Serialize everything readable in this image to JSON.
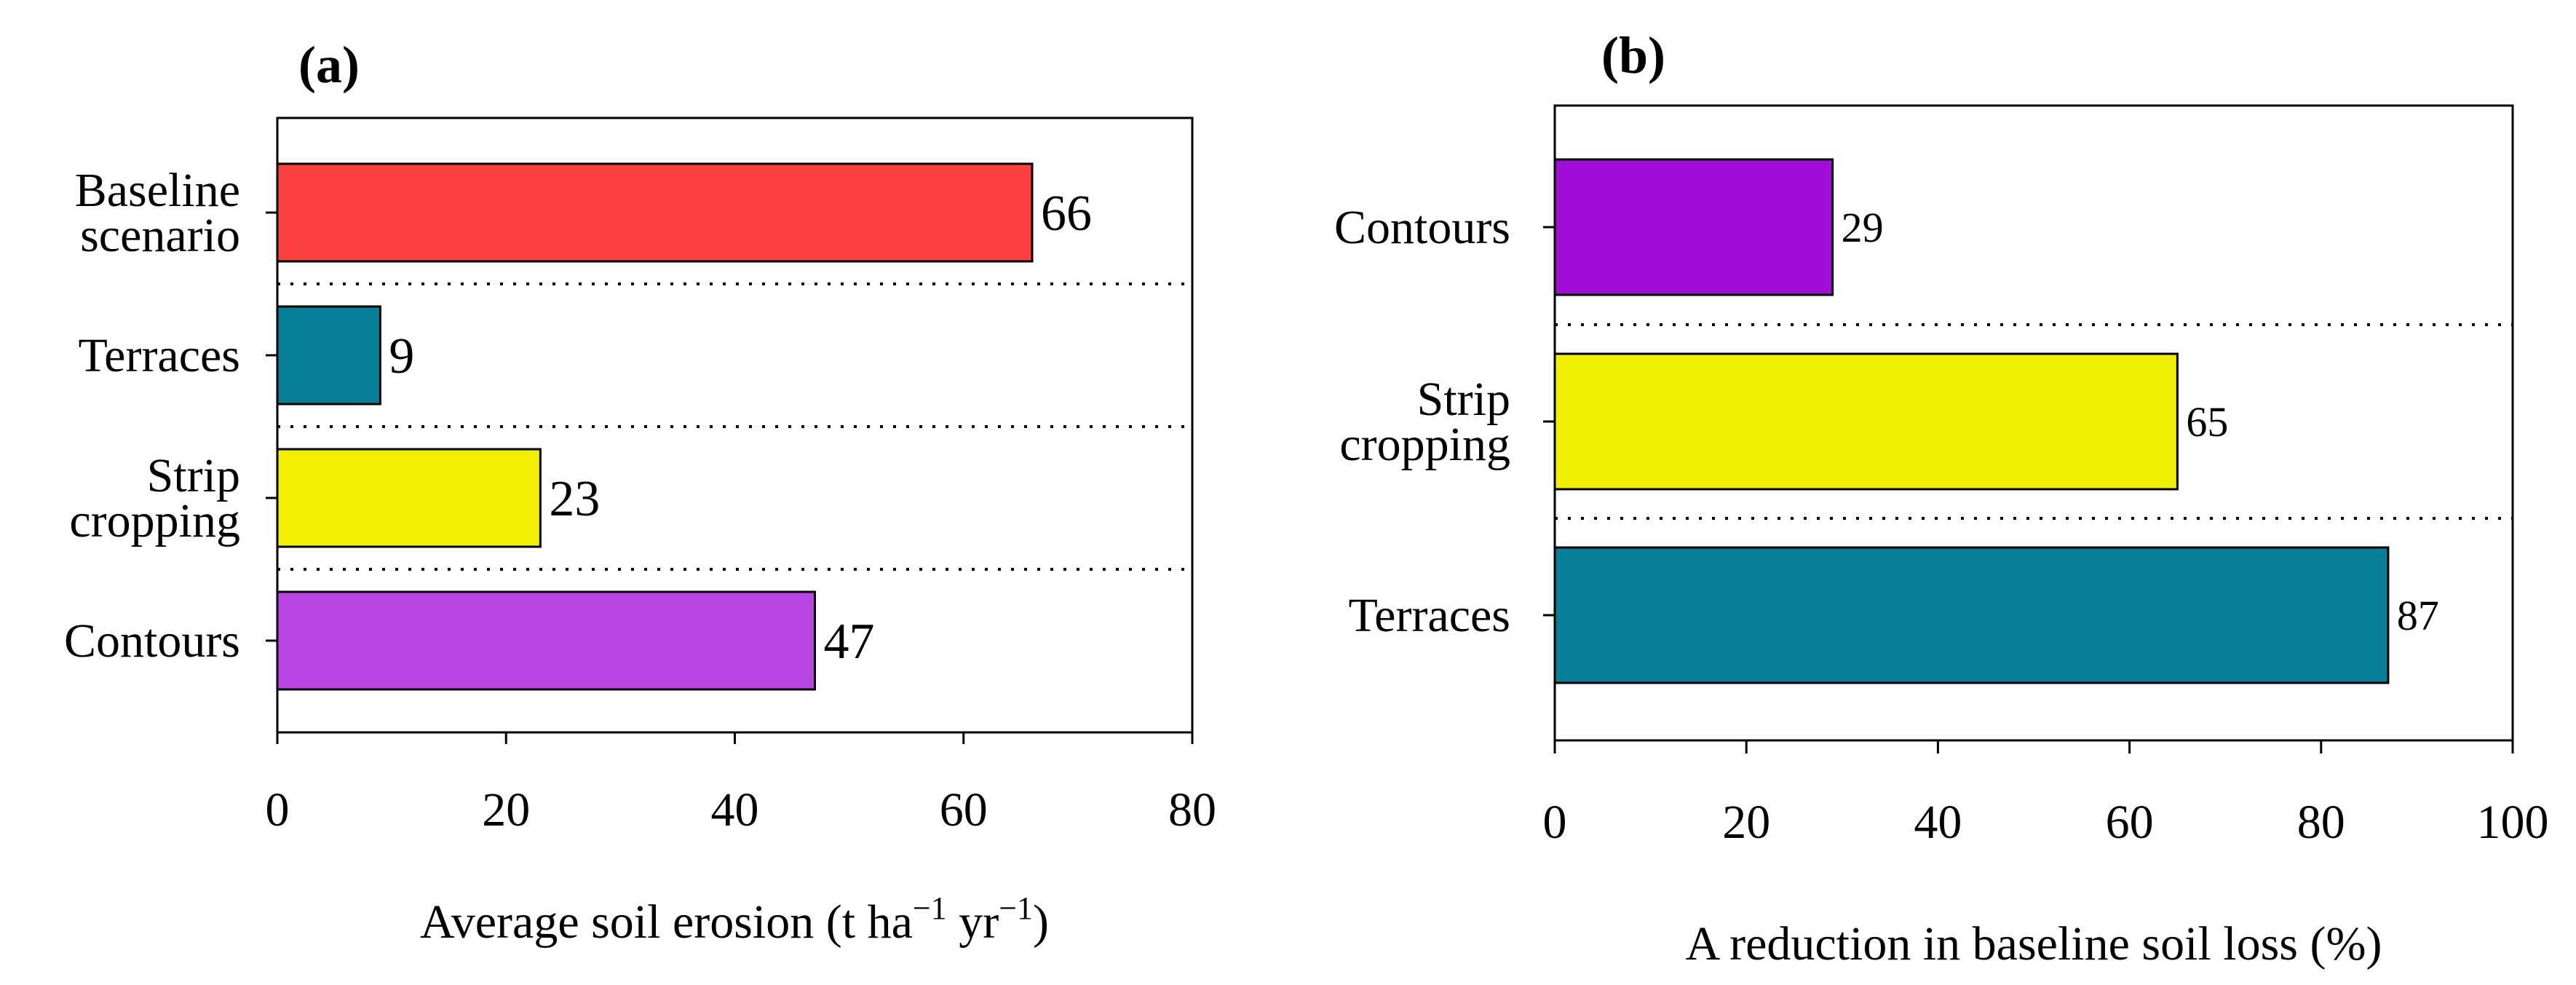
{
  "chart_data": [
    {
      "type": "bar",
      "orientation": "horizontal",
      "panel_label": "(a)",
      "categories": [
        [
          "Baseline",
          "scenario"
        ],
        [
          "Terraces"
        ],
        [
          "Strip",
          "cropping"
        ],
        [
          "Contours"
        ]
      ],
      "values": [
        66,
        9,
        23,
        47
      ],
      "value_labels": [
        "66",
        "9",
        "23",
        "47"
      ],
      "bar_colors": [
        "#fc3f3f",
        "#087f98",
        "#f2ef00",
        "#b946e3"
      ],
      "xlabel": "Average soil erosion (t ha",
      "xlabel_sup1": "−1",
      "xlabel_mid": " yr",
      "xlabel_sup2": "−1",
      "xlabel_end": ")",
      "xlim": [
        0,
        80
      ],
      "xticks": [
        "0",
        "20",
        "40",
        "60",
        "80"
      ],
      "separators": "dotted",
      "grid": false
    },
    {
      "type": "bar",
      "orientation": "horizontal",
      "panel_label": "(b)",
      "categories": [
        [
          "Contours"
        ],
        [
          "Strip",
          "cropping"
        ],
        [
          "Terraces"
        ]
      ],
      "values": [
        29,
        65,
        87
      ],
      "value_labels": [
        "29",
        "65",
        "87"
      ],
      "bar_colors": [
        "#a10ed8",
        "#f1ef00",
        "#087f98"
      ],
      "xlabel": "A reduction in baseline soil loss (%)",
      "xlim": [
        0,
        100
      ],
      "xticks": [
        "0",
        "20",
        "40",
        "60",
        "80",
        "100"
      ],
      "separators": "dotted",
      "grid": false
    }
  ]
}
